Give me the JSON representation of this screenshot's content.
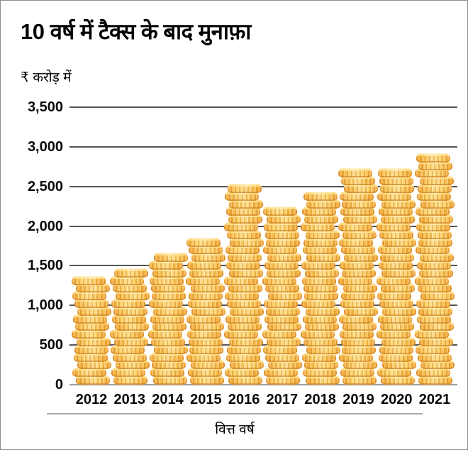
{
  "chart": {
    "title": "10 वर्ष में टैक्स के बाद मुनाफ़ा",
    "unit_label": "₹ करोड़ में",
    "xaxis_title": "वित्त वर्ष"
  },
  "chart_data": {
    "type": "bar",
    "bar_style": "coin-stack",
    "title": "10 वर्ष में टैक्स के बाद मुनाफ़ा",
    "subtitle": "₹ करोड़ में",
    "xlabel": "वित्त वर्ष",
    "ylabel": "₹ करोड़ में",
    "categories": [
      "2012",
      "2013",
      "2014",
      "2015",
      "2016",
      "2017",
      "2018",
      "2019",
      "2020",
      "2021"
    ],
    "values": [
      1310,
      1420,
      1660,
      1830,
      2510,
      2240,
      2440,
      2690,
      2720,
      2900
    ],
    "ylim": [
      0,
      3500
    ],
    "yticks": [
      0,
      500,
      1000,
      1500,
      2000,
      2500,
      3000,
      3500
    ],
    "ytick_labels": [
      "0",
      "500",
      "1,000",
      "1,500",
      "2,000",
      "2,500",
      "3,000",
      "3,500"
    ],
    "grid": true,
    "legend": false,
    "colors": {
      "coin_body": "#FBC252",
      "coin_highlight": "#FFEDB8",
      "coin_shadow": "#F2A434",
      "gridline": "#555555",
      "baseline": "#9B9B9B",
      "text": "#0A0A0A"
    }
  }
}
